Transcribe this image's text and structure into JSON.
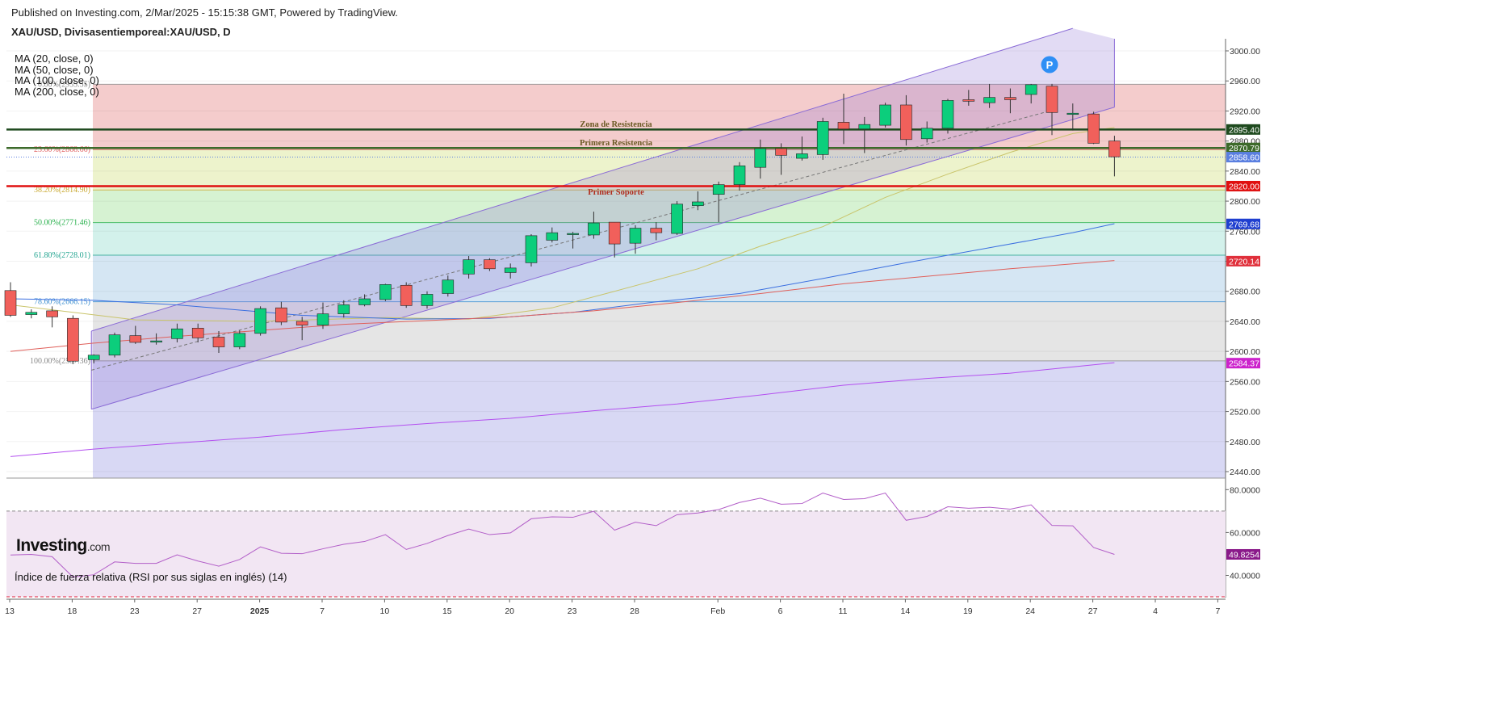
{
  "header": {
    "published": "Published on Investing.com, 2/Mar/2025 - 15:15:38 GMT, Powered by TradingView.",
    "symbol": "XAU/USD, Divisasentiemporeal:XAU/USD, D"
  },
  "ma_legend": [
    "MA (20, close, 0)",
    "MA (50, close, 0)",
    "MA (100, close, 0)",
    "MA (200, close, 0)"
  ],
  "logo": {
    "main": "Investing",
    "suffix": ".com"
  },
  "colors": {
    "up": "#0cce7c",
    "down": "#f1605b",
    "grid": "#eeeeee",
    "ma20": "#c9c46a",
    "ma50": "#3b6fe0",
    "ma100": "#e0605b",
    "ma200": "#b450f0",
    "channel": "#8a6bd6",
    "rsi": "#b25ec8",
    "bg_price": "#e8e6f4",
    "bg_rsi": "#f2e6f3"
  },
  "chart_data": {
    "type": "candlestick",
    "title": "XAU/USD, Divisasentiemporeal:XAU/USD, D",
    "y_range": [
      2425,
      3020
    ],
    "y_ticks": [
      2440,
      2480,
      2520,
      2560,
      2600,
      2640,
      2680,
      2720,
      2760,
      2800,
      2840,
      2880,
      2920,
      2960,
      3000
    ],
    "x_tick_labels": [
      {
        "label": "13",
        "slot": 0
      },
      {
        "label": "18",
        "slot": 3
      },
      {
        "label": "23",
        "slot": 6
      },
      {
        "label": "27",
        "slot": 9
      },
      {
        "label": "2025",
        "slot": 12
      },
      {
        "label": "7",
        "slot": 15
      },
      {
        "label": "10",
        "slot": 18
      },
      {
        "label": "15",
        "slot": 21
      },
      {
        "label": "20",
        "slot": 24
      },
      {
        "label": "23",
        "slot": 27
      },
      {
        "label": "28",
        "slot": 30
      },
      {
        "label": "Feb",
        "slot": 34
      },
      {
        "label": "6",
        "slot": 37
      },
      {
        "label": "11",
        "slot": 40
      },
      {
        "label": "14",
        "slot": 43
      },
      {
        "label": "19",
        "slot": 46
      },
      {
        "label": "24",
        "slot": 49
      },
      {
        "label": "27",
        "slot": 52
      },
      {
        "label": "4",
        "slot": 55
      },
      {
        "label": "7",
        "slot": 58
      }
    ],
    "candles": [
      {
        "o": 2681,
        "h": 2692,
        "l": 2646,
        "c": 2648
      },
      {
        "o": 2649,
        "h": 2656,
        "l": 2644,
        "c": 2652
      },
      {
        "o": 2654,
        "h": 2660,
        "l": 2632,
        "c": 2646
      },
      {
        "o": 2644,
        "h": 2648,
        "l": 2583,
        "c": 2587
      },
      {
        "o": 2589,
        "h": 2596,
        "l": 2584,
        "c": 2595
      },
      {
        "o": 2595,
        "h": 2625,
        "l": 2592,
        "c": 2622
      },
      {
        "o": 2621,
        "h": 2634,
        "l": 2610,
        "c": 2612
      },
      {
        "o": 2613,
        "h": 2624,
        "l": 2609,
        "c": 2614
      },
      {
        "o": 2617,
        "h": 2637,
        "l": 2612,
        "c": 2630
      },
      {
        "o": 2631,
        "h": 2637,
        "l": 2612,
        "c": 2618
      },
      {
        "o": 2619,
        "h": 2627,
        "l": 2598,
        "c": 2606
      },
      {
        "o": 2606,
        "h": 2628,
        "l": 2603,
        "c": 2624
      },
      {
        "o": 2624,
        "h": 2660,
        "l": 2621,
        "c": 2657
      },
      {
        "o": 2658,
        "h": 2666,
        "l": 2635,
        "c": 2639
      },
      {
        "o": 2640,
        "h": 2646,
        "l": 2615,
        "c": 2635
      },
      {
        "o": 2635,
        "h": 2665,
        "l": 2630,
        "c": 2650
      },
      {
        "o": 2650,
        "h": 2668,
        "l": 2645,
        "c": 2662
      },
      {
        "o": 2662,
        "h": 2676,
        "l": 2660,
        "c": 2670
      },
      {
        "o": 2669,
        "h": 2690,
        "l": 2667,
        "c": 2689
      },
      {
        "o": 2688,
        "h": 2692,
        "l": 2658,
        "c": 2661
      },
      {
        "o": 2661,
        "h": 2680,
        "l": 2657,
        "c": 2676
      },
      {
        "o": 2677,
        "h": 2701,
        "l": 2673,
        "c": 2695
      },
      {
        "o": 2703,
        "h": 2727,
        "l": 2697,
        "c": 2722
      },
      {
        "o": 2722,
        "h": 2724,
        "l": 2707,
        "c": 2710
      },
      {
        "o": 2705,
        "h": 2717,
        "l": 2697,
        "c": 2711
      },
      {
        "o": 2718,
        "h": 2756,
        "l": 2713,
        "c": 2754
      },
      {
        "o": 2748,
        "h": 2765,
        "l": 2745,
        "c": 2758
      },
      {
        "o": 2756,
        "h": 2759,
        "l": 2737,
        "c": 2757
      },
      {
        "o": 2755,
        "h": 2786,
        "l": 2750,
        "c": 2771
      },
      {
        "o": 2772,
        "h": 2772,
        "l": 2725,
        "c": 2743
      },
      {
        "o": 2744,
        "h": 2768,
        "l": 2730,
        "c": 2764
      },
      {
        "o": 2764,
        "h": 2772,
        "l": 2748,
        "c": 2758
      },
      {
        "o": 2757,
        "h": 2800,
        "l": 2755,
        "c": 2796
      },
      {
        "o": 2794,
        "h": 2813,
        "l": 2788,
        "c": 2799
      },
      {
        "o": 2809,
        "h": 2826,
        "l": 2772,
        "c": 2822
      },
      {
        "o": 2822,
        "h": 2852,
        "l": 2814,
        "c": 2847
      },
      {
        "o": 2845,
        "h": 2882,
        "l": 2830,
        "c": 2870
      },
      {
        "o": 2870,
        "h": 2877,
        "l": 2835,
        "c": 2861
      },
      {
        "o": 2857,
        "h": 2886,
        "l": 2854,
        "c": 2863
      },
      {
        "o": 2862,
        "h": 2911,
        "l": 2855,
        "c": 2906
      },
      {
        "o": 2905,
        "h": 2943,
        "l": 2876,
        "c": 2896
      },
      {
        "o": 2896,
        "h": 2912,
        "l": 2864,
        "c": 2902
      },
      {
        "o": 2901,
        "h": 2931,
        "l": 2898,
        "c": 2928
      },
      {
        "o": 2928,
        "h": 2941,
        "l": 2874,
        "c": 2882
      },
      {
        "o": 2883,
        "h": 2906,
        "l": 2878,
        "c": 2897
      },
      {
        "o": 2897,
        "h": 2936,
        "l": 2890,
        "c": 2934
      },
      {
        "o": 2935,
        "h": 2948,
        "l": 2927,
        "c": 2933
      },
      {
        "o": 2931,
        "h": 2956,
        "l": 2924,
        "c": 2938
      },
      {
        "o": 2938,
        "h": 2950,
        "l": 2917,
        "c": 2935
      },
      {
        "o": 2942,
        "h": 2956,
        "l": 2930,
        "c": 2955
      },
      {
        "o": 2953,
        "h": 2956,
        "l": 2888,
        "c": 2918
      },
      {
        "o": 2917,
        "h": 2930,
        "l": 2894,
        "c": 2917
      },
      {
        "o": 2916,
        "h": 2919,
        "l": 2876,
        "c": 2877
      },
      {
        "o": 2880,
        "h": 2887,
        "l": 2833,
        "c": 2859
      }
    ],
    "moving_averages": [
      {
        "name": "MA (20, close, 0)",
        "color": "#c9c46a",
        "points": [
          [
            0,
            2662
          ],
          [
            6,
            2642
          ],
          [
            12,
            2640
          ],
          [
            18,
            2645
          ],
          [
            22,
            2643
          ],
          [
            26,
            2658
          ],
          [
            29,
            2680
          ],
          [
            33,
            2710
          ],
          [
            36,
            2740
          ],
          [
            39,
            2766
          ],
          [
            42,
            2805
          ],
          [
            45,
            2836
          ],
          [
            48,
            2865
          ],
          [
            51,
            2890
          ],
          [
            53,
            2898
          ]
        ]
      },
      {
        "name": "MA (50, close, 0)",
        "color": "#3b6fe0",
        "points": [
          [
            0,
            2670
          ],
          [
            4,
            2668
          ],
          [
            8,
            2662
          ],
          [
            14,
            2648
          ],
          [
            19,
            2643
          ],
          [
            23,
            2644
          ],
          [
            27,
            2652
          ],
          [
            31,
            2666
          ],
          [
            35,
            2677
          ],
          [
            39,
            2697
          ],
          [
            43,
            2718
          ],
          [
            47,
            2738
          ],
          [
            51,
            2758
          ],
          [
            53,
            2770
          ]
        ]
      },
      {
        "name": "MA (100, close, 0)",
        "color": "#e0605b",
        "points": [
          [
            0,
            2600
          ],
          [
            4,
            2611
          ],
          [
            8,
            2620
          ],
          [
            12,
            2628
          ],
          [
            16,
            2636
          ],
          [
            20,
            2641
          ],
          [
            24,
            2646
          ],
          [
            28,
            2654
          ],
          [
            32,
            2665
          ],
          [
            36,
            2677
          ],
          [
            40,
            2690
          ],
          [
            44,
            2700
          ],
          [
            48,
            2710
          ],
          [
            53,
            2721
          ]
        ]
      },
      {
        "name": "MA (200, close, 0)",
        "color": "#b450f0",
        "points": [
          [
            0,
            2460
          ],
          [
            4,
            2470
          ],
          [
            8,
            2478
          ],
          [
            12,
            2486
          ],
          [
            16,
            2496
          ],
          [
            20,
            2504
          ],
          [
            24,
            2511
          ],
          [
            28,
            2521
          ],
          [
            32,
            2530
          ],
          [
            36,
            2542
          ],
          [
            40,
            2555
          ],
          [
            44,
            2564
          ],
          [
            48,
            2571
          ],
          [
            53,
            2585
          ]
        ]
      }
    ],
    "fibonacci": [
      {
        "label": "0.00%(2955.55)",
        "value": 2955.55,
        "color": "#888888"
      },
      {
        "label": "23.60%(2868.66)",
        "value": 2868.66,
        "color": "#e06060"
      },
      {
        "label": "38.20%(2814.90)",
        "value": 2814.9,
        "color": "#c9a830"
      },
      {
        "label": "50.00%(2771.46)",
        "value": 2771.46,
        "color": "#28b04c"
      },
      {
        "label": "61.80%(2728.01)",
        "value": 2728.01,
        "color": "#22a490"
      },
      {
        "label": "78.60%(2666.15)",
        "value": 2666.15,
        "color": "#3d8fd0"
      },
      {
        "label": "100.00%(2587.36)",
        "value": 2587.36,
        "color": "#888888"
      }
    ],
    "fib_zones": [
      {
        "top": 2955.55,
        "bottom": 2868.66,
        "color": "#f4cccc"
      },
      {
        "top": 2868.66,
        "bottom": 2814.9,
        "color": "#edf3cc"
      },
      {
        "top": 2814.9,
        "bottom": 2771.46,
        "color": "#d6f2d2"
      },
      {
        "top": 2771.46,
        "bottom": 2728.01,
        "color": "#d3f1eb"
      },
      {
        "top": 2728.01,
        "bottom": 2666.15,
        "color": "#d5e6f3"
      },
      {
        "top": 2666.15,
        "bottom": 2587.36,
        "color": "#e5e5e5"
      },
      {
        "top": 2587.36,
        "bottom": 2425,
        "color": "#d8d8f4"
      }
    ],
    "horizontal_lines": [
      {
        "name": "Zona de Resistencia",
        "value": 2895.4,
        "color": "#1e4a1e",
        "text_color": "#6b5a24"
      },
      {
        "name": "Primera Resistencia",
        "value": 2870.79,
        "color": "#3c6a2a",
        "text_color": "#6b5a24"
      },
      {
        "name": "Primer Soporte",
        "value": 2820.0,
        "color": "#e01010",
        "text_color": "#b03020"
      }
    ],
    "channel": {
      "lower_start": [
        4,
        2523
      ],
      "lower_end": [
        53,
        2925
      ],
      "upper_start": [
        4,
        2627
      ],
      "upper_end": [
        51,
        3030
      ],
      "color": "#8a6bd6"
    },
    "price_tags": [
      {
        "label": "2895.40",
        "value": 2895.4,
        "color": "#1e4a1e"
      },
      {
        "label": "2870.79",
        "value": 2870.79,
        "color": "#3c6a2a"
      },
      {
        "label": "2858.60",
        "value": 2858.6,
        "color": "#5a7fe0"
      },
      {
        "label": "2820.00",
        "value": 2820.0,
        "color": "#e01010"
      },
      {
        "label": "2769.68",
        "value": 2769.68,
        "color": "#1f3fd0"
      },
      {
        "label": "2720.14",
        "value": 2720.14,
        "color": "#e0303b"
      },
      {
        "label": "2584.37",
        "value": 2584.37,
        "color": "#cc22cc"
      }
    ],
    "current_price": 2858.6,
    "rsi": {
      "title": "Índice de fuerza relativa (RSI por sus siglas en inglés) (14)",
      "y_range": [
        27,
        82
      ],
      "y_ticks": [
        "80.0000",
        "60.0000",
        "40.0000"
      ],
      "y_tick_values": [
        80,
        60,
        40
      ],
      "overbought": 70,
      "oversold": 30,
      "current_label": "49.8254",
      "values": [
        49.5,
        49.8,
        48.7,
        39.2,
        40.3,
        46.3,
        45.6,
        45.6,
        49.6,
        46.7,
        44.3,
        47.4,
        53.3,
        50.3,
        50.1,
        52.4,
        54.5,
        55.8,
        59.0,
        52.1,
        54.9,
        58.6,
        61.6,
        59.0,
        59.8,
        66.4,
        67.3,
        67.1,
        69.9,
        61.1,
        64.8,
        63.2,
        68.3,
        69.1,
        70.7,
        74.0,
        76.0,
        73.2,
        73.5,
        78.4,
        75.4,
        75.8,
        78.4,
        65.7,
        67.5,
        72.0,
        71.3,
        71.8,
        70.9,
        72.9,
        63.3,
        63.1,
        53.0,
        49.8
      ]
    }
  }
}
